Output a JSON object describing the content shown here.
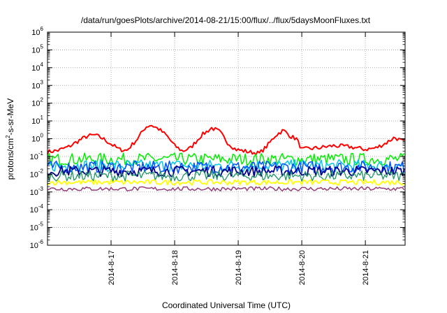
{
  "chart_data": {
    "type": "line",
    "title": "/data/run/goesPlots/archive/2014-08-21/15:00/flux/../flux/5daysMoonFluxes.txt",
    "xlabel": "Coordinated Universal Time (UTC)",
    "ylabel_main": "protons/cm",
    "ylabel_sup": "2",
    "ylabel_rest": "-s-sr-MeV",
    "y_scale": "log",
    "ylim": [
      1e-06,
      1000000.0
    ],
    "y_ticks": [
      {
        "value": 1e-06,
        "base": "10",
        "exp": "-6"
      },
      {
        "value": 1e-05,
        "base": "10",
        "exp": "-5"
      },
      {
        "value": 0.0001,
        "base": "10",
        "exp": "-4"
      },
      {
        "value": 0.001,
        "base": "10",
        "exp": "-3"
      },
      {
        "value": 0.01,
        "base": "10",
        "exp": "-2"
      },
      {
        "value": 0.1,
        "base": "10",
        "exp": "-1"
      },
      {
        "value": 1,
        "base": "10",
        "exp": "0"
      },
      {
        "value": 10,
        "base": "10",
        "exp": "1"
      },
      {
        "value": 100,
        "base": "10",
        "exp": "2"
      },
      {
        "value": 1000,
        "base": "10",
        "exp": "3"
      },
      {
        "value": 10000,
        "base": "10",
        "exp": "4"
      },
      {
        "value": 100000,
        "base": "10",
        "exp": "5"
      },
      {
        "value": 1000000,
        "base": "10",
        "exp": "6"
      }
    ],
    "xlim": [
      "2014-08-16 00:00",
      "2014-08-21 15:00"
    ],
    "x_ticks": [
      {
        "value": "2014-08-17 00:00",
        "label": "2014-8-17"
      },
      {
        "value": "2014-08-18 00:00",
        "label": "2014-8-18"
      },
      {
        "value": "2014-08-19 00:00",
        "label": "2014-8-19"
      },
      {
        "value": "2014-08-20 00:00",
        "label": "2014-8-20"
      },
      {
        "value": "2014-08-21 00:00",
        "label": "2014-8-21"
      }
    ],
    "grid": true,
    "legend": "none",
    "series": [
      {
        "color": "#ff0000",
        "width": 2.0,
        "noise": 0.12,
        "points": [
          [
            "2014-08-16 00:00",
            0.18
          ],
          [
            "2014-08-16 04:00",
            0.22
          ],
          [
            "2014-08-16 08:00",
            0.35
          ],
          [
            "2014-08-16 12:00",
            0.8
          ],
          [
            "2014-08-16 15:00",
            1.4
          ],
          [
            "2014-08-16 18:00",
            1.6
          ],
          [
            "2014-08-16 21:00",
            1.0
          ],
          [
            "2014-08-17 00:00",
            0.5
          ],
          [
            "2014-08-17 03:00",
            0.25
          ],
          [
            "2014-08-17 06:00",
            0.22
          ],
          [
            "2014-08-17 10:00",
            1.0
          ],
          [
            "2014-08-17 13:00",
            4.5
          ],
          [
            "2014-08-17 15:00",
            6.0
          ],
          [
            "2014-08-17 18:00",
            3.5
          ],
          [
            "2014-08-17 21:00",
            1.5
          ],
          [
            "2014-08-18 00:00",
            0.4
          ],
          [
            "2014-08-18 03:00",
            0.2
          ],
          [
            "2014-08-18 06:00",
            0.3
          ],
          [
            "2014-08-18 10:00",
            1.5
          ],
          [
            "2014-08-18 14:00",
            4.0
          ],
          [
            "2014-08-18 17:00",
            2.5
          ],
          [
            "2014-08-18 20:00",
            0.6
          ],
          [
            "2014-08-18 23:00",
            0.25
          ],
          [
            "2014-08-19 04:00",
            0.18
          ],
          [
            "2014-08-19 08:00",
            0.15
          ],
          [
            "2014-08-19 11:00",
            0.4
          ],
          [
            "2014-08-19 14:00",
            1.5
          ],
          [
            "2014-08-19 17:00",
            3.0
          ],
          [
            "2014-08-19 20:00",
            1.3
          ],
          [
            "2014-08-19 22:00",
            1.0
          ],
          [
            "2014-08-20 00:00",
            0.25
          ],
          [
            "2014-08-20 06:00",
            0.3
          ],
          [
            "2014-08-20 12:00",
            0.4
          ],
          [
            "2014-08-20 18:00",
            0.35
          ],
          [
            "2014-08-21 00:00",
            0.25
          ],
          [
            "2014-08-21 04:00",
            0.3
          ],
          [
            "2014-08-21 08:00",
            0.6
          ],
          [
            "2014-08-21 11:00",
            1.2
          ],
          [
            "2014-08-21 15:00",
            0.6
          ]
        ]
      },
      {
        "color": "#00ee00",
        "width": 1.5,
        "noise": 0.35,
        "points": [
          [
            "2014-08-16 00:00",
            0.07
          ],
          [
            "2014-08-21 15:00",
            0.07
          ]
        ]
      },
      {
        "color": "#00c8e6",
        "width": 1.5,
        "noise": 0.35,
        "points": [
          [
            "2014-08-16 00:00",
            0.03
          ],
          [
            "2014-08-21 15:00",
            0.03
          ]
        ]
      },
      {
        "color": "#0050ff",
        "width": 1.5,
        "noise": 0.35,
        "points": [
          [
            "2014-08-16 00:00",
            0.025
          ],
          [
            "2014-08-21 15:00",
            0.025
          ]
        ]
      },
      {
        "color": "#00008c",
        "width": 1.8,
        "noise": 0.3,
        "points": [
          [
            "2014-08-16 00:00",
            0.015
          ],
          [
            "2014-08-21 15:00",
            0.015
          ]
        ]
      },
      {
        "color": "#1e9664",
        "width": 1.3,
        "noise": 0.3,
        "points": [
          [
            "2014-08-16 00:00",
            0.008
          ],
          [
            "2014-08-21 15:00",
            0.008
          ]
        ]
      },
      {
        "color": "#ffff00",
        "width": 1.8,
        "noise": 0.15,
        "points": [
          [
            "2014-08-16 00:00",
            0.0035
          ],
          [
            "2014-08-21 15:00",
            0.0035
          ]
        ]
      },
      {
        "color": "#963c78",
        "width": 1.5,
        "noise": 0.12,
        "points": [
          [
            "2014-08-16 00:00",
            0.0015
          ],
          [
            "2014-08-21 15:00",
            0.0015
          ]
        ]
      }
    ]
  }
}
